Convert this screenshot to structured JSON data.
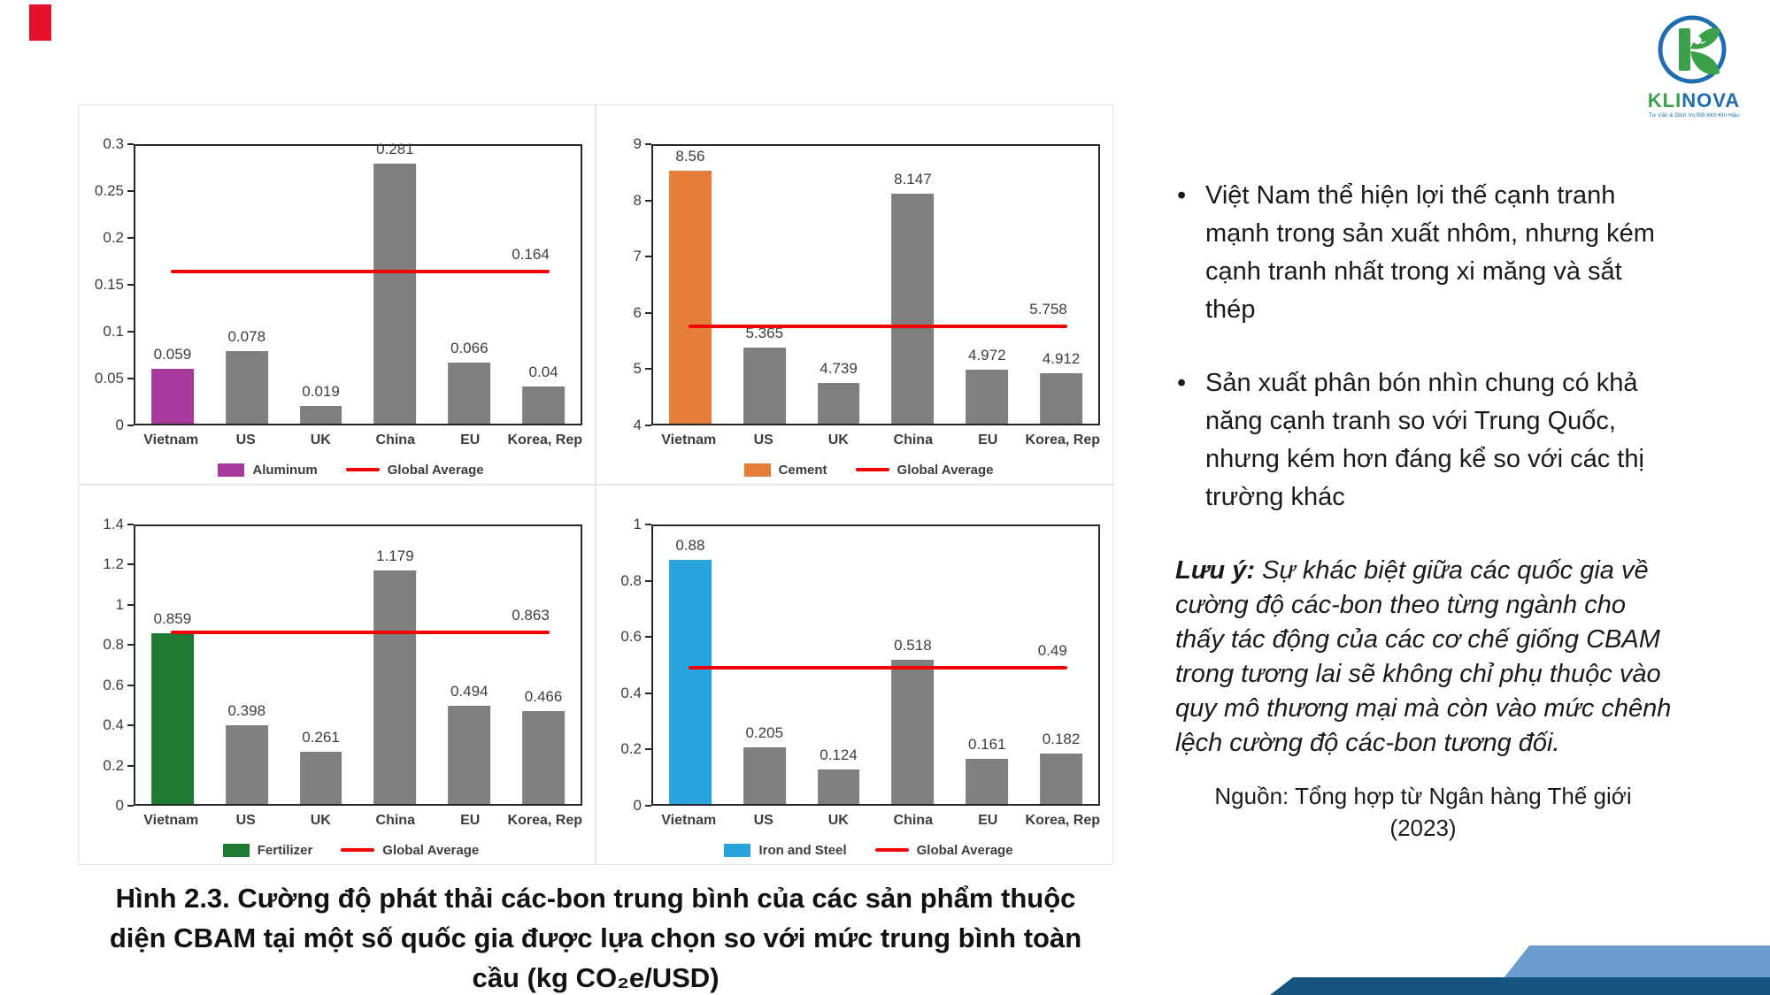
{
  "logo": {
    "brand_part1": "KLI",
    "brand_part2": "NOVA",
    "tagline": "Tư Vấn & Dịch Vụ Đổi Mới Khí Hậu",
    "green": "#3aa04a",
    "blue": "#1f6cb0"
  },
  "chart_data": [
    {
      "type": "bar",
      "title": "",
      "categories": [
        "Vietnam",
        "US",
        "UK",
        "China",
        "EU",
        "Korea, Rep"
      ],
      "values": [
        0.059,
        0.078,
        0.019,
        0.281,
        0.066,
        0.04
      ],
      "value_labels": [
        "0.059",
        "0.078",
        "0.019",
        "0.281",
        "0.066",
        "0.04"
      ],
      "series_name": "Aluminum",
      "legend": [
        "Aluminum",
        "Global Average"
      ],
      "global_average": 0.164,
      "global_average_label": "0.164",
      "ylim": [
        0,
        0.3
      ],
      "yticks": [
        "0",
        "0.05",
        "0.1",
        "0.15",
        "0.2",
        "0.25",
        "0.3"
      ],
      "bar_color": "#a83a9e",
      "gray_color": "#7f7f7f",
      "avg_color": "#f40000",
      "highlight_index": 0,
      "grid": "off",
      "legend_position": "bottom"
    },
    {
      "type": "bar",
      "title": "",
      "categories": [
        "Vietnam",
        "US",
        "UK",
        "China",
        "EU",
        "Korea, Rep"
      ],
      "values": [
        8.56,
        5.365,
        4.739,
        8.147,
        4.972,
        4.912
      ],
      "value_labels": [
        "8.56",
        "5.365",
        "4.739",
        "8.147",
        "4.972",
        "4.912"
      ],
      "series_name": "Cement",
      "legend": [
        "Cement",
        "Global Average"
      ],
      "global_average": 5.758,
      "global_average_label": "5.758",
      "ylim": [
        4,
        9
      ],
      "yticks": [
        "4",
        "5",
        "6",
        "7",
        "8",
        "9"
      ],
      "bar_color": "#e57e38",
      "gray_color": "#7f7f7f",
      "avg_color": "#f40000",
      "highlight_index": 0,
      "grid": "off",
      "legend_position": "bottom"
    },
    {
      "type": "bar",
      "title": "",
      "categories": [
        "Vietnam",
        "US",
        "UK",
        "China",
        "EU",
        "Korea, Rep"
      ],
      "values": [
        0.859,
        0.398,
        0.261,
        1.179,
        0.494,
        0.466
      ],
      "value_labels": [
        "0.859",
        "0.398",
        "0.261",
        "1.179",
        "0.494",
        "0.466"
      ],
      "series_name": "Fertilizer",
      "legend": [
        "Fertilizer",
        "Global Average"
      ],
      "global_average": 0.863,
      "global_average_label": "0.863",
      "ylim": [
        0,
        1.4
      ],
      "yticks": [
        "0",
        "0.2",
        "0.4",
        "0.6",
        "0.8",
        "1",
        "1.2",
        "1.4"
      ],
      "bar_color": "#1f7a33",
      "gray_color": "#7f7f7f",
      "avg_color": "#f40000",
      "highlight_index": 0,
      "grid": "off",
      "legend_position": "bottom"
    },
    {
      "type": "bar",
      "title": "",
      "categories": [
        "Vietnam",
        "US",
        "UK",
        "China",
        "EU",
        "Korea, Rep"
      ],
      "values": [
        0.88,
        0.205,
        0.124,
        0.518,
        0.161,
        0.182
      ],
      "value_labels": [
        "0.88",
        "0.205",
        "0.124",
        "0.518",
        "0.161",
        "0.182"
      ],
      "series_name": "Iron and Steel",
      "legend": [
        "Iron and Steel",
        "Global Average"
      ],
      "global_average": 0.49,
      "global_average_label": "0.49",
      "ylim": [
        0,
        1
      ],
      "yticks": [
        "0",
        "0.2",
        "0.4",
        "0.6",
        "0.8",
        "1"
      ],
      "bar_color": "#29a3dc",
      "gray_color": "#7f7f7f",
      "avg_color": "#f40000",
      "highlight_index": 0,
      "grid": "off",
      "legend_position": "bottom"
    }
  ],
  "figure_caption": "Hình 2.3. Cường độ phát thải các-bon trung bình của các sản phẩm thuộc\ndiện CBAM tại một số quốc gia được lựa chọn so với mức trung bình toàn\ncầu (kg CO₂e/USD)",
  "right_panel": {
    "bullets": [
      "Việt Nam thể hiện lợi thế cạnh tranh\nmạnh trong sản xuất nhôm, nhưng kém\ncạnh tranh nhất trong xi măng và sắt\nthép",
      "Sản xuất phân bón nhìn chung có khả\nnăng cạnh tranh so với Trung Quốc,\nnhưng kém hơn đáng kể so với các thị\ntrường khác"
    ],
    "note_label": "Lưu ý:",
    "note_body": "Sự khác biệt giữa các quốc gia về\ncường độ các-bon theo từng ngành cho\nthấy tác động của các cơ chế giống CBAM\ntrong tương lai sẽ không chỉ phụ thuộc vào\nquy mô thương mại mà còn vào mức chênh\nlệch cường độ các-bon tương đối.",
    "source": "Nguồn: Tổng hợp từ Ngân hàng Thế giới\n(2023)"
  }
}
